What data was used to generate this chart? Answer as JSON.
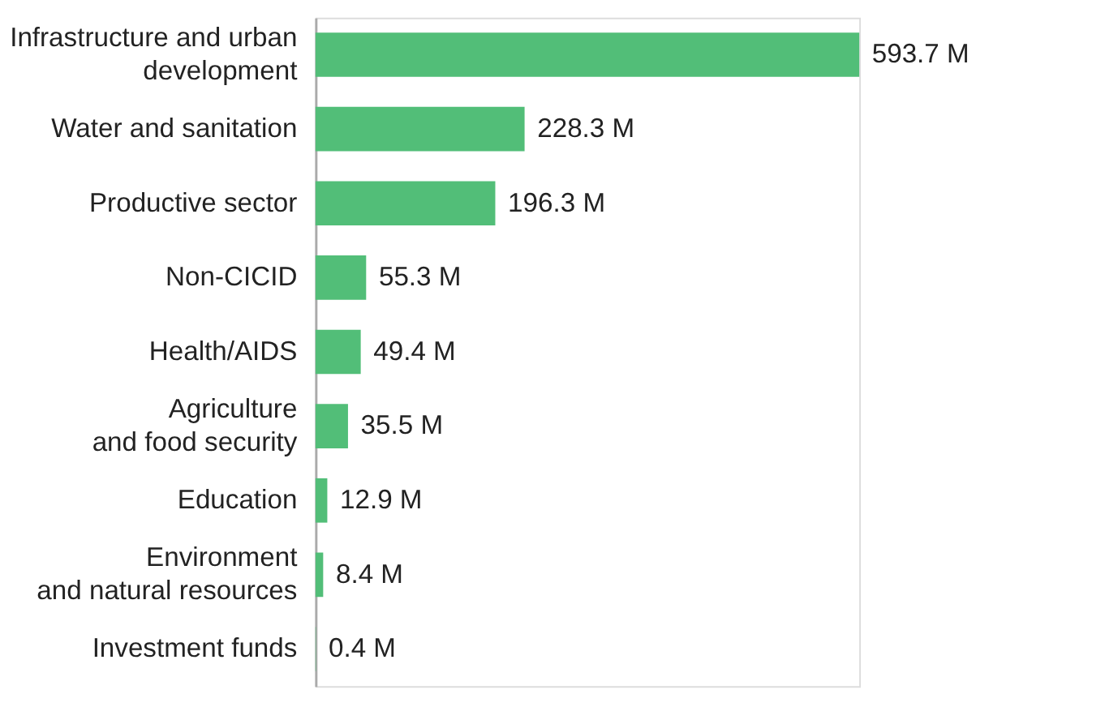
{
  "chart_data": {
    "type": "bar",
    "orientation": "horizontal",
    "categories": [
      "Infrastructure and urban\ndevelopment",
      "Water and sanitation",
      "Productive sector",
      "Non-CICID",
      "Health/AIDS",
      "Agriculture\nand food security",
      "Education",
      "Environment\nand natural resources",
      "Investment funds"
    ],
    "values": [
      593.7,
      228.3,
      196.3,
      55.3,
      49.4,
      35.5,
      12.9,
      8.4,
      0.4
    ],
    "value_labels": [
      "593.7 M",
      "228.3 M",
      "196.3 M",
      "55.3 M",
      "49.4 M",
      "35.5 M",
      "12.9 M",
      "8.4 M",
      "0.4 M"
    ],
    "color": "#52be78"
  }
}
